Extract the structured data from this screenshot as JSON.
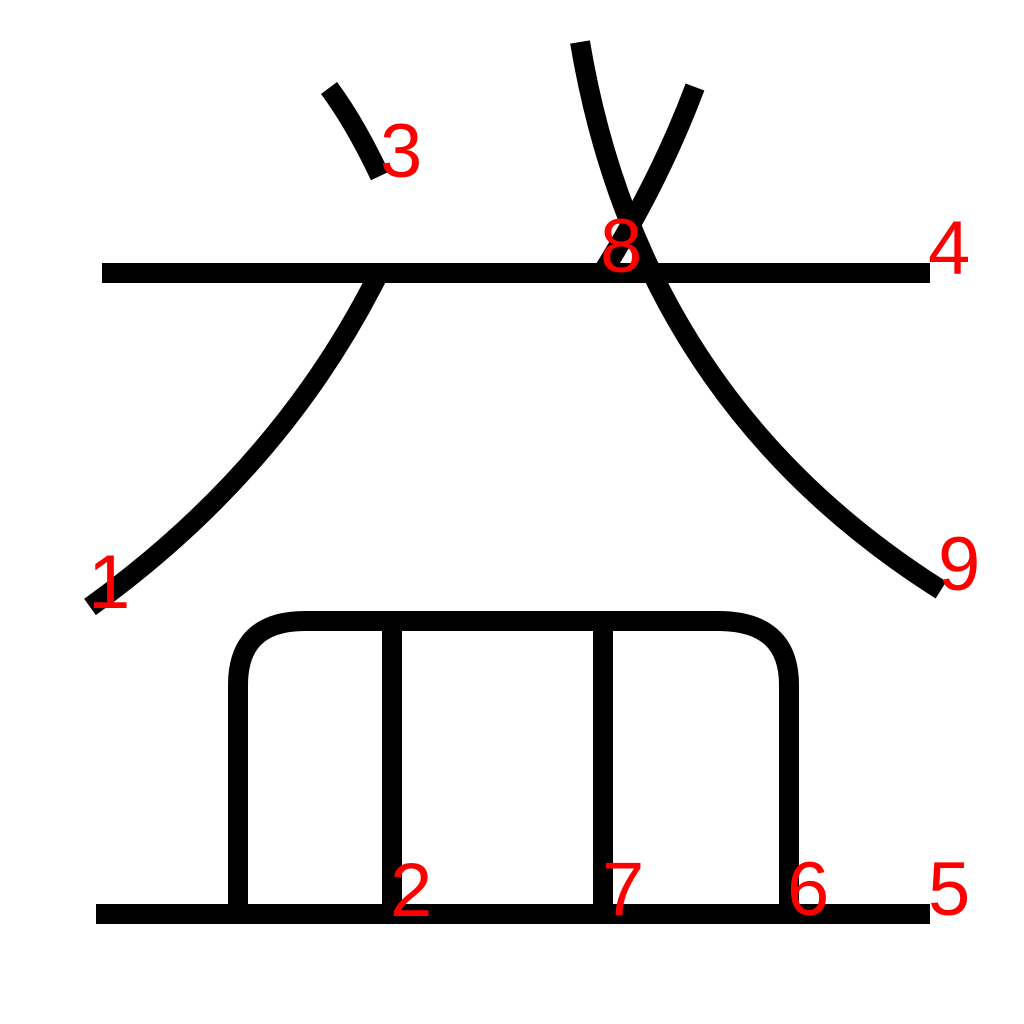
{
  "diagram": {
    "stroke_color": "#000000",
    "label_color": "#ff0000",
    "labels": {
      "stroke_1": "1",
      "stroke_2": "2",
      "stroke_3": "3",
      "stroke_4": "4",
      "stroke_5": "5",
      "stroke_6": "6",
      "stroke_7": "7",
      "stroke_8": "8",
      "stroke_9": "9"
    }
  }
}
